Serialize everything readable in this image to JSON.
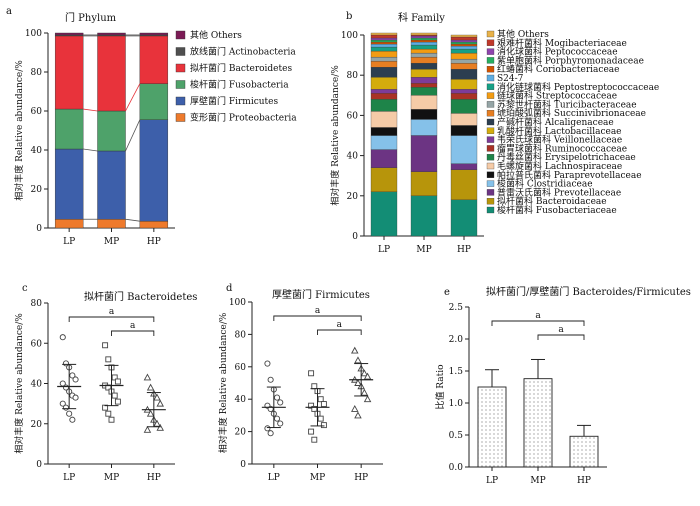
{
  "colors": {
    "phylum": [
      "#ee7a2c",
      "#3d5faa",
      "#4ea26a",
      "#e8333b",
      "#4f4f4f",
      "#7b1b55"
    ],
    "family": [
      "#e8b24a",
      "#c0392b",
      "#8e44ad",
      "#27ae60",
      "#d35400",
      "#5dade2",
      "#16a085",
      "#f39c12",
      "#95a5a6",
      "#e67e22",
      "#2c3e50",
      "#d4ac0d",
      "#7d3c98",
      "#a93226",
      "#1e8449",
      "#f5cba7",
      "#111111",
      "#85c1e9",
      "#6c3483",
      "#b7950b",
      "#138d75",
      "#943126",
      "#1f2a78",
      "#7b1b3a"
    ]
  },
  "chart_data": [
    {
      "id": "a",
      "type": "stacked-bar",
      "panel_label": "a",
      "title": "门 Phylum",
      "xlabel": "",
      "ylabel": "相对丰度 Relative abundance/%",
      "ylim": [
        0,
        100
      ],
      "yticks": [
        0,
        20,
        40,
        60,
        80,
        100
      ],
      "categories": [
        "LP",
        "MP",
        "HP"
      ],
      "series": [
        {
          "name": "变形菌门 Proteobacteria",
          "values": [
            4.5,
            4.5,
            3.5
          ]
        },
        {
          "name": "厚壁菌门 Firmicutes",
          "values": [
            36,
            35,
            52
          ]
        },
        {
          "name": "梭杆菌门 Fusobacteria",
          "values": [
            20.5,
            20.5,
            18.5
          ]
        },
        {
          "name": "拟杆菌门 Bacteroidetes",
          "values": [
            37.5,
            38.5,
            24.5
          ]
        },
        {
          "name": "放线菌门 Actinobacteria",
          "values": [
            0.5,
            0.5,
            0.5
          ]
        },
        {
          "name": "其他 Others",
          "values": [
            1,
            1,
            1
          ]
        }
      ],
      "legend_order": [
        "其他 Others",
        "放线菌门 Actinobacteria",
        "拟杆菌门 Bacteroidetes",
        "梭杆菌门 Fusobacteria",
        "厚壁菌门 Firmicutes",
        "变形菌门 Proteobacteria"
      ]
    },
    {
      "id": "b",
      "type": "stacked-bar",
      "panel_label": "b",
      "title": "科 Family",
      "xlabel": "",
      "ylabel": "相对丰度 Relative abundance/%",
      "ylim": [
        0,
        100
      ],
      "yticks": [
        0,
        20,
        40,
        60,
        80,
        100
      ],
      "categories": [
        "LP",
        "MP",
        "HP"
      ],
      "legend": [
        "其他 Others",
        "艰难杆菌科 Mogibacteriaceae",
        "消化球菌科 Peptococcaceae",
        "紫单胞菌科 Porphyromonadaceae",
        "红蝽菌科 Coriobacteriaceae",
        "S24-7",
        "消化链球菌科 Peptostreptococcaceae",
        "链球菌科 Streptococcaceae",
        "苏黎世杆菌科 Turicibacteraceae",
        "琥珀酸弧菌科 Succinivibrionaceae",
        "产碱杆菌科 Alcaligenaceae",
        "乳酸杆菌科 Lactobacillaceae",
        "韦荣氏球菌科 Veillonellaceae",
        "瘤胃球菌科 Ruminococcaceae",
        "丹毒丝菌科 Erysipelotrichaceae",
        "毛螺旋菌科 Lachnospiraceae",
        "帕拉普氏菌科 Paraprevotellaceae",
        "梭菌科 Clostridiaceae",
        "普雷沃氏菌科 Prevotellaceae",
        "拟杆菌科 Bacteroidaceae",
        "梭杆菌科 Fusobacteriaceae"
      ],
      "stack": {
        "LP": [
          22,
          12,
          9,
          7,
          4,
          8,
          6,
          3,
          2,
          6,
          5,
          3,
          2,
          3,
          2,
          1.5,
          1,
          1,
          1,
          1.5,
          1
        ],
        "MP": [
          20,
          12,
          18,
          8,
          5,
          7,
          4,
          2,
          3,
          4,
          3,
          3,
          2,
          2,
          2,
          1.5,
          1,
          1,
          1,
          0.5,
          1
        ],
        "HP": [
          18,
          15,
          3,
          14,
          5,
          6,
          7,
          3,
          2,
          5,
          5,
          3,
          2,
          3,
          2,
          1.5,
          1,
          1,
          1,
          1.5,
          1
        ]
      }
    },
    {
      "id": "c",
      "type": "scatter",
      "panel_label": "c",
      "title": "拟杆菌门 Bacteroidetes",
      "xlabel": "",
      "ylabel": "相对丰度 Relative abundance/%",
      "ylim": [
        0,
        80
      ],
      "yticks": [
        0,
        20,
        40,
        60,
        80
      ],
      "categories": [
        "LP",
        "MP",
        "HP"
      ],
      "markers": [
        "circle",
        "square",
        "triangle"
      ],
      "points": {
        "LP": [
          63,
          50,
          48,
          44,
          42,
          40,
          38,
          36,
          34,
          33,
          30,
          28,
          25,
          22
        ],
        "MP": [
          59,
          52,
          48,
          43,
          41,
          39,
          38,
          36,
          34,
          31,
          28,
          25,
          22
        ],
        "HP": [
          43,
          38,
          35,
          33,
          30,
          27,
          25,
          22,
          20,
          18,
          17
        ]
      },
      "mean": [
        38.5,
        39,
        27
      ],
      "sd": [
        11,
        10,
        8.5
      ],
      "significance": [
        {
          "from": "LP",
          "to": "HP",
          "label": "a"
        },
        {
          "from": "MP",
          "to": "HP",
          "label": "a"
        }
      ]
    },
    {
      "id": "d",
      "type": "scatter",
      "panel_label": "d",
      "title": "厚壁菌门 Firmicutes",
      "xlabel": "",
      "ylabel": "相对丰度 Relative abundance/%",
      "ylim": [
        0,
        100
      ],
      "yticks": [
        0,
        20,
        40,
        60,
        80,
        100
      ],
      "categories": [
        "LP",
        "MP",
        "HP"
      ],
      "markers": [
        "circle",
        "square",
        "triangle"
      ],
      "points": {
        "LP": [
          62,
          52,
          46,
          41,
          38,
          36,
          34,
          31,
          28,
          25,
          22,
          19
        ],
        "MP": [
          56,
          48,
          45,
          40,
          37,
          36,
          34,
          31,
          28,
          24,
          20,
          15
        ],
        "HP": [
          70,
          64,
          59,
          56,
          54,
          52,
          50,
          48,
          44,
          40,
          34,
          30
        ]
      },
      "mean": [
        35,
        35,
        52
      ],
      "sd": [
        12.5,
        11.5,
        10
      ],
      "significance": [
        {
          "from": "LP",
          "to": "HP",
          "label": "a"
        },
        {
          "from": "MP",
          "to": "HP",
          "label": "a"
        }
      ]
    },
    {
      "id": "e",
      "type": "bar",
      "panel_label": "e",
      "title": "拟杆菌门/厚壁菌门  Bacteroides/Firmicutes",
      "xlabel": "",
      "ylabel": "比值 Ratio",
      "ylim": [
        0,
        2.5
      ],
      "yticks": [
        0,
        0.5,
        1.0,
        1.5,
        2.0,
        2.5
      ],
      "categories": [
        "LP",
        "MP",
        "HP"
      ],
      "values": [
        1.25,
        1.38,
        0.48
      ],
      "errors": [
        0.27,
        0.3,
        0.17
      ],
      "significance": [
        {
          "from": "LP",
          "to": "HP",
          "label": "a"
        },
        {
          "from": "MP",
          "to": "HP",
          "label": "a"
        }
      ]
    }
  ]
}
